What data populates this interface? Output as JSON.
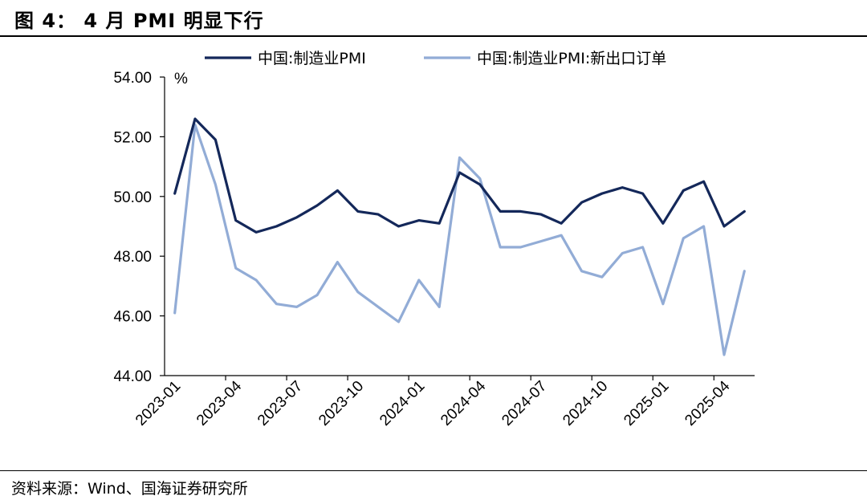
{
  "header": {
    "title": "图 4： 4 月 PMI 明显下行"
  },
  "footer": {
    "source": "资料来源：Wind、国海证券研究所"
  },
  "chart_data": {
    "type": "line",
    "y_unit": "%",
    "ylim": [
      44,
      54
    ],
    "y_ticks": [
      "44.00",
      "46.00",
      "48.00",
      "50.00",
      "52.00",
      "54.00"
    ],
    "x_tick_labels": [
      "2023-01",
      "2023-04",
      "2023-07",
      "2023-10",
      "2024-01",
      "2024-04",
      "2024-07",
      "2024-10",
      "2025-01",
      "2025-04"
    ],
    "x": [
      "2023-01",
      "2023-02",
      "2023-03",
      "2023-04",
      "2023-05",
      "2023-06",
      "2023-07",
      "2023-08",
      "2023-09",
      "2023-10",
      "2023-11",
      "2023-12",
      "2024-01",
      "2024-02",
      "2024-03",
      "2024-04",
      "2024-05",
      "2024-06",
      "2024-07",
      "2024-08",
      "2024-09",
      "2024-10",
      "2024-11",
      "2024-12",
      "2025-01",
      "2025-02",
      "2025-03",
      "2025-04",
      "2025-05"
    ],
    "series": [
      {
        "name": "中国:制造业PMI",
        "color": "#14285a",
        "values": [
          50.1,
          52.6,
          51.9,
          49.2,
          48.8,
          49.0,
          49.3,
          49.7,
          50.2,
          49.5,
          49.4,
          49.0,
          49.2,
          49.1,
          50.8,
          50.4,
          49.5,
          49.5,
          49.4,
          49.1,
          49.8,
          50.1,
          50.3,
          50.1,
          49.1,
          50.2,
          50.5,
          49.0,
          49.5
        ]
      },
      {
        "name": "中国:制造业PMI:新出口订单",
        "color": "#92acd6",
        "values": [
          46.1,
          52.4,
          50.4,
          47.6,
          47.2,
          46.4,
          46.3,
          46.7,
          47.8,
          46.8,
          46.3,
          45.8,
          47.2,
          46.3,
          51.3,
          50.6,
          48.3,
          48.3,
          48.5,
          48.7,
          47.5,
          47.3,
          48.1,
          48.3,
          46.4,
          48.6,
          49.0,
          44.7,
          47.5
        ]
      }
    ],
    "legend_position": "top",
    "grid": false
  }
}
